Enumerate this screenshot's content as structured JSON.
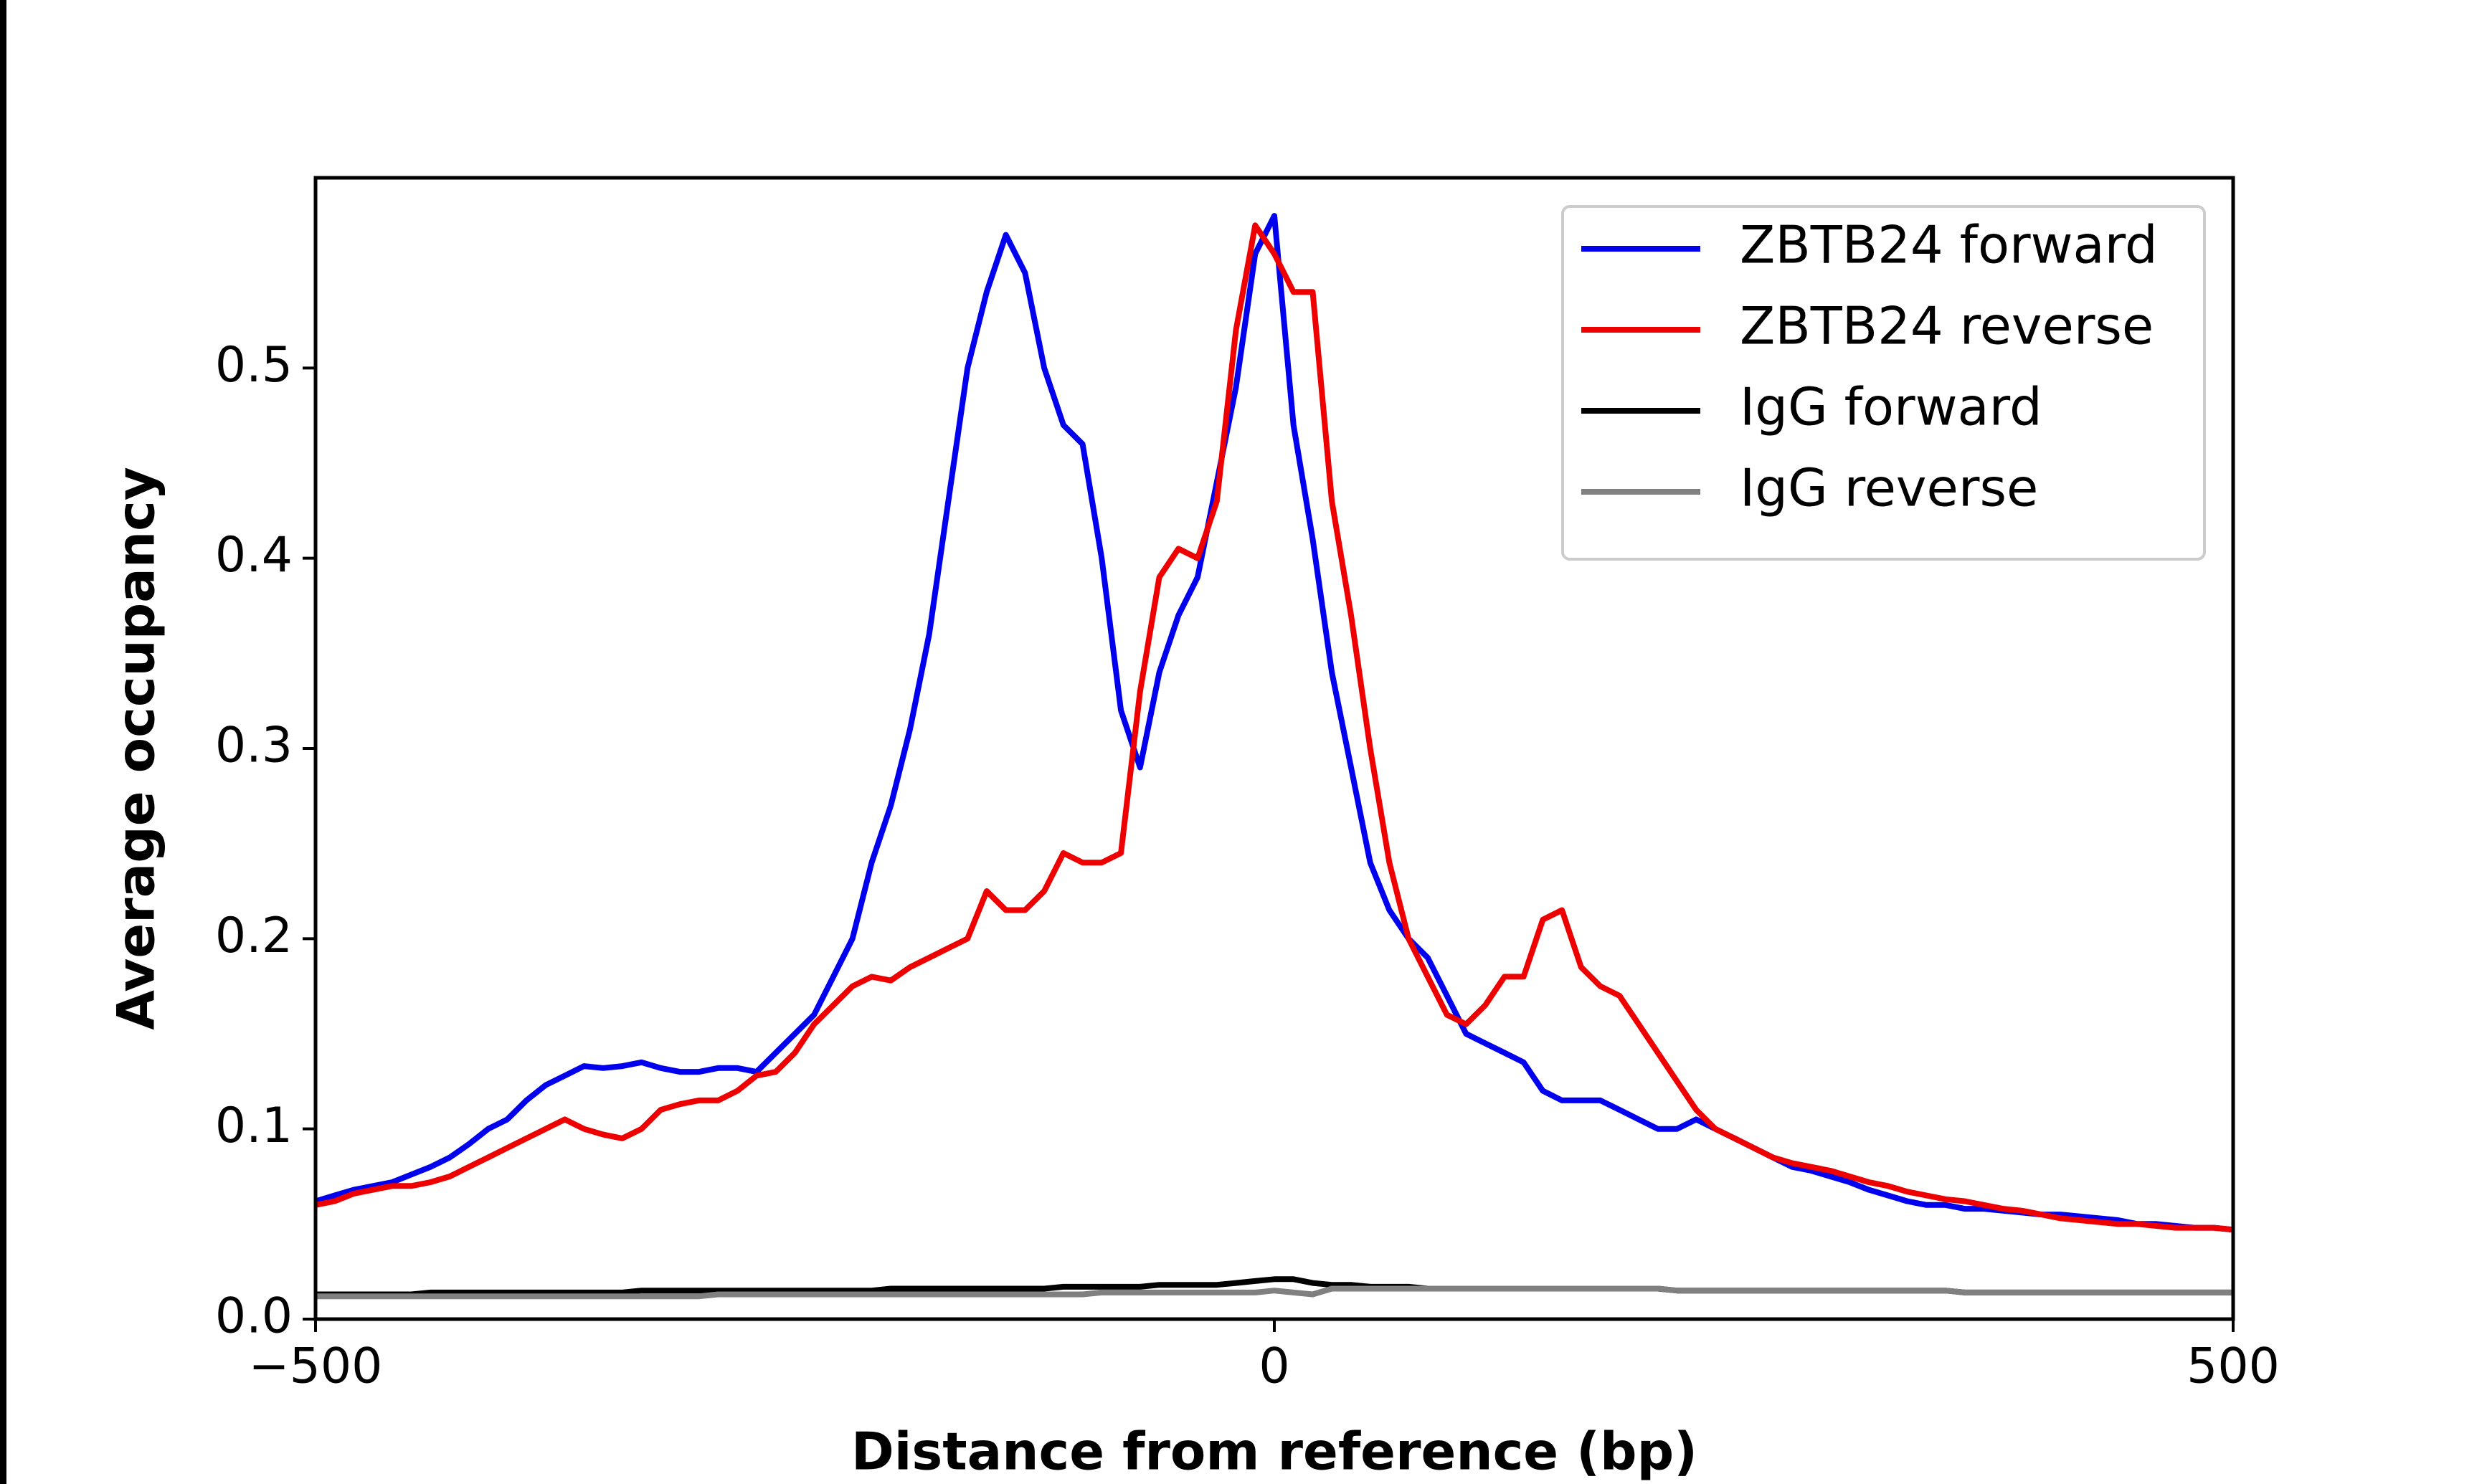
{
  "chart_data": {
    "type": "line",
    "xlabel": "Distance from reference (bp)",
    "ylabel": "Average occupancy",
    "x": [
      -500,
      -490,
      -480,
      -470,
      -460,
      -450,
      -440,
      -430,
      -420,
      -410,
      -400,
      -390,
      -380,
      -370,
      -360,
      -350,
      -340,
      -330,
      -320,
      -310,
      -300,
      -290,
      -280,
      -270,
      -260,
      -250,
      -240,
      -230,
      -220,
      -210,
      -200,
      -190,
      -180,
      -170,
      -160,
      -150,
      -140,
      -130,
      -120,
      -110,
      -100,
      -90,
      -80,
      -70,
      -60,
      -50,
      -40,
      -30,
      -20,
      -10,
      0,
      10,
      20,
      30,
      40,
      50,
      60,
      70,
      80,
      90,
      100,
      110,
      120,
      130,
      140,
      150,
      160,
      170,
      180,
      190,
      200,
      210,
      220,
      230,
      240,
      250,
      260,
      270,
      280,
      290,
      300,
      310,
      320,
      330,
      340,
      350,
      360,
      370,
      380,
      390,
      400,
      410,
      420,
      430,
      440,
      450,
      460,
      470,
      480,
      490,
      500
    ],
    "series": [
      {
        "name": "ZBTB24 forward",
        "color": "#0000ee",
        "values": [
          0.062,
          0.065,
          0.068,
          0.07,
          0.072,
          0.076,
          0.08,
          0.085,
          0.092,
          0.1,
          0.105,
          0.115,
          0.123,
          0.128,
          0.133,
          0.132,
          0.133,
          0.135,
          0.132,
          0.13,
          0.13,
          0.132,
          0.132,
          0.13,
          0.14,
          0.15,
          0.16,
          0.18,
          0.2,
          0.24,
          0.27,
          0.31,
          0.36,
          0.43,
          0.5,
          0.54,
          0.57,
          0.55,
          0.5,
          0.47,
          0.46,
          0.4,
          0.32,
          0.29,
          0.34,
          0.37,
          0.39,
          0.44,
          0.49,
          0.56,
          0.58,
          0.47,
          0.41,
          0.34,
          0.29,
          0.24,
          0.215,
          0.2,
          0.19,
          0.17,
          0.15,
          0.145,
          0.14,
          0.135,
          0.12,
          0.115,
          0.115,
          0.115,
          0.11,
          0.105,
          0.1,
          0.1,
          0.105,
          0.1,
          0.095,
          0.09,
          0.085,
          0.08,
          0.078,
          0.075,
          0.072,
          0.068,
          0.065,
          0.062,
          0.06,
          0.06,
          0.058,
          0.058,
          0.057,
          0.056,
          0.055,
          0.055,
          0.054,
          0.053,
          0.052,
          0.05,
          0.05,
          0.049,
          0.048,
          0.048,
          0.047
        ]
      },
      {
        "name": "ZBTB24 reverse",
        "color": "#ee0000",
        "values": [
          0.06,
          0.062,
          0.066,
          0.068,
          0.07,
          0.07,
          0.072,
          0.075,
          0.08,
          0.085,
          0.09,
          0.095,
          0.1,
          0.105,
          0.1,
          0.097,
          0.095,
          0.1,
          0.11,
          0.113,
          0.115,
          0.115,
          0.12,
          0.128,
          0.13,
          0.14,
          0.155,
          0.165,
          0.175,
          0.18,
          0.178,
          0.185,
          0.19,
          0.195,
          0.2,
          0.225,
          0.215,
          0.215,
          0.225,
          0.245,
          0.24,
          0.24,
          0.245,
          0.33,
          0.39,
          0.405,
          0.4,
          0.43,
          0.52,
          0.575,
          0.56,
          0.54,
          0.54,
          0.43,
          0.37,
          0.3,
          0.24,
          0.2,
          0.18,
          0.16,
          0.155,
          0.165,
          0.18,
          0.18,
          0.21,
          0.215,
          0.185,
          0.175,
          0.17,
          0.155,
          0.14,
          0.125,
          0.11,
          0.1,
          0.095,
          0.09,
          0.085,
          0.082,
          0.08,
          0.078,
          0.075,
          0.072,
          0.07,
          0.067,
          0.065,
          0.063,
          0.062,
          0.06,
          0.058,
          0.057,
          0.055,
          0.053,
          0.052,
          0.051,
          0.05,
          0.05,
          0.049,
          0.048,
          0.048,
          0.048,
          0.047
        ]
      },
      {
        "name": "IgG forward",
        "color": "#000000",
        "values": [
          0.013,
          0.013,
          0.013,
          0.013,
          0.013,
          0.013,
          0.014,
          0.014,
          0.014,
          0.014,
          0.014,
          0.014,
          0.014,
          0.014,
          0.014,
          0.014,
          0.014,
          0.015,
          0.015,
          0.015,
          0.015,
          0.015,
          0.015,
          0.015,
          0.015,
          0.015,
          0.015,
          0.015,
          0.015,
          0.015,
          0.016,
          0.016,
          0.016,
          0.016,
          0.016,
          0.016,
          0.016,
          0.016,
          0.016,
          0.017,
          0.017,
          0.017,
          0.017,
          0.017,
          0.018,
          0.018,
          0.018,
          0.018,
          0.019,
          0.02,
          0.021,
          0.021,
          0.019,
          0.018,
          0.018,
          0.017,
          0.017,
          0.017,
          0.016,
          0.016,
          0.016,
          0.016,
          0.016,
          0.016,
          0.016,
          0.016,
          0.016,
          0.016,
          0.016,
          0.016,
          0.016,
          0.015,
          0.015,
          0.015,
          0.015,
          0.015,
          0.015,
          0.015,
          0.015,
          0.015,
          0.015,
          0.015,
          0.015,
          0.015,
          0.015,
          0.015,
          0.014,
          0.014,
          0.014,
          0.014,
          0.014,
          0.014,
          0.014,
          0.014,
          0.014,
          0.014,
          0.014,
          0.014,
          0.014,
          0.014,
          0.014
        ]
      },
      {
        "name": "IgG reverse",
        "color": "#808080",
        "values": [
          0.012,
          0.012,
          0.012,
          0.012,
          0.012,
          0.012,
          0.012,
          0.012,
          0.012,
          0.012,
          0.012,
          0.012,
          0.012,
          0.012,
          0.012,
          0.012,
          0.012,
          0.012,
          0.012,
          0.012,
          0.012,
          0.013,
          0.013,
          0.013,
          0.013,
          0.013,
          0.013,
          0.013,
          0.013,
          0.013,
          0.013,
          0.013,
          0.013,
          0.013,
          0.013,
          0.013,
          0.013,
          0.013,
          0.013,
          0.013,
          0.013,
          0.014,
          0.014,
          0.014,
          0.014,
          0.014,
          0.014,
          0.014,
          0.014,
          0.014,
          0.015,
          0.014,
          0.013,
          0.016,
          0.016,
          0.016,
          0.016,
          0.016,
          0.016,
          0.016,
          0.016,
          0.016,
          0.016,
          0.016,
          0.016,
          0.016,
          0.016,
          0.016,
          0.016,
          0.016,
          0.016,
          0.015,
          0.015,
          0.015,
          0.015,
          0.015,
          0.015,
          0.015,
          0.015,
          0.015,
          0.015,
          0.015,
          0.015,
          0.015,
          0.015,
          0.015,
          0.014,
          0.014,
          0.014,
          0.014,
          0.014,
          0.014,
          0.014,
          0.014,
          0.014,
          0.014,
          0.014,
          0.014,
          0.014,
          0.014,
          0.014
        ]
      }
    ],
    "xlim": [
      -500,
      500
    ],
    "xticks": [
      {
        "value": -500,
        "label": "−500"
      },
      0,
      500
    ],
    "ylim": [
      0,
      0.6
    ],
    "yticks": [
      {
        "value": 0,
        "label": "0.0"
      },
      0.1,
      0.2,
      0.3,
      0.4,
      0.5
    ],
    "grid": false,
    "legend": "upper right"
  }
}
